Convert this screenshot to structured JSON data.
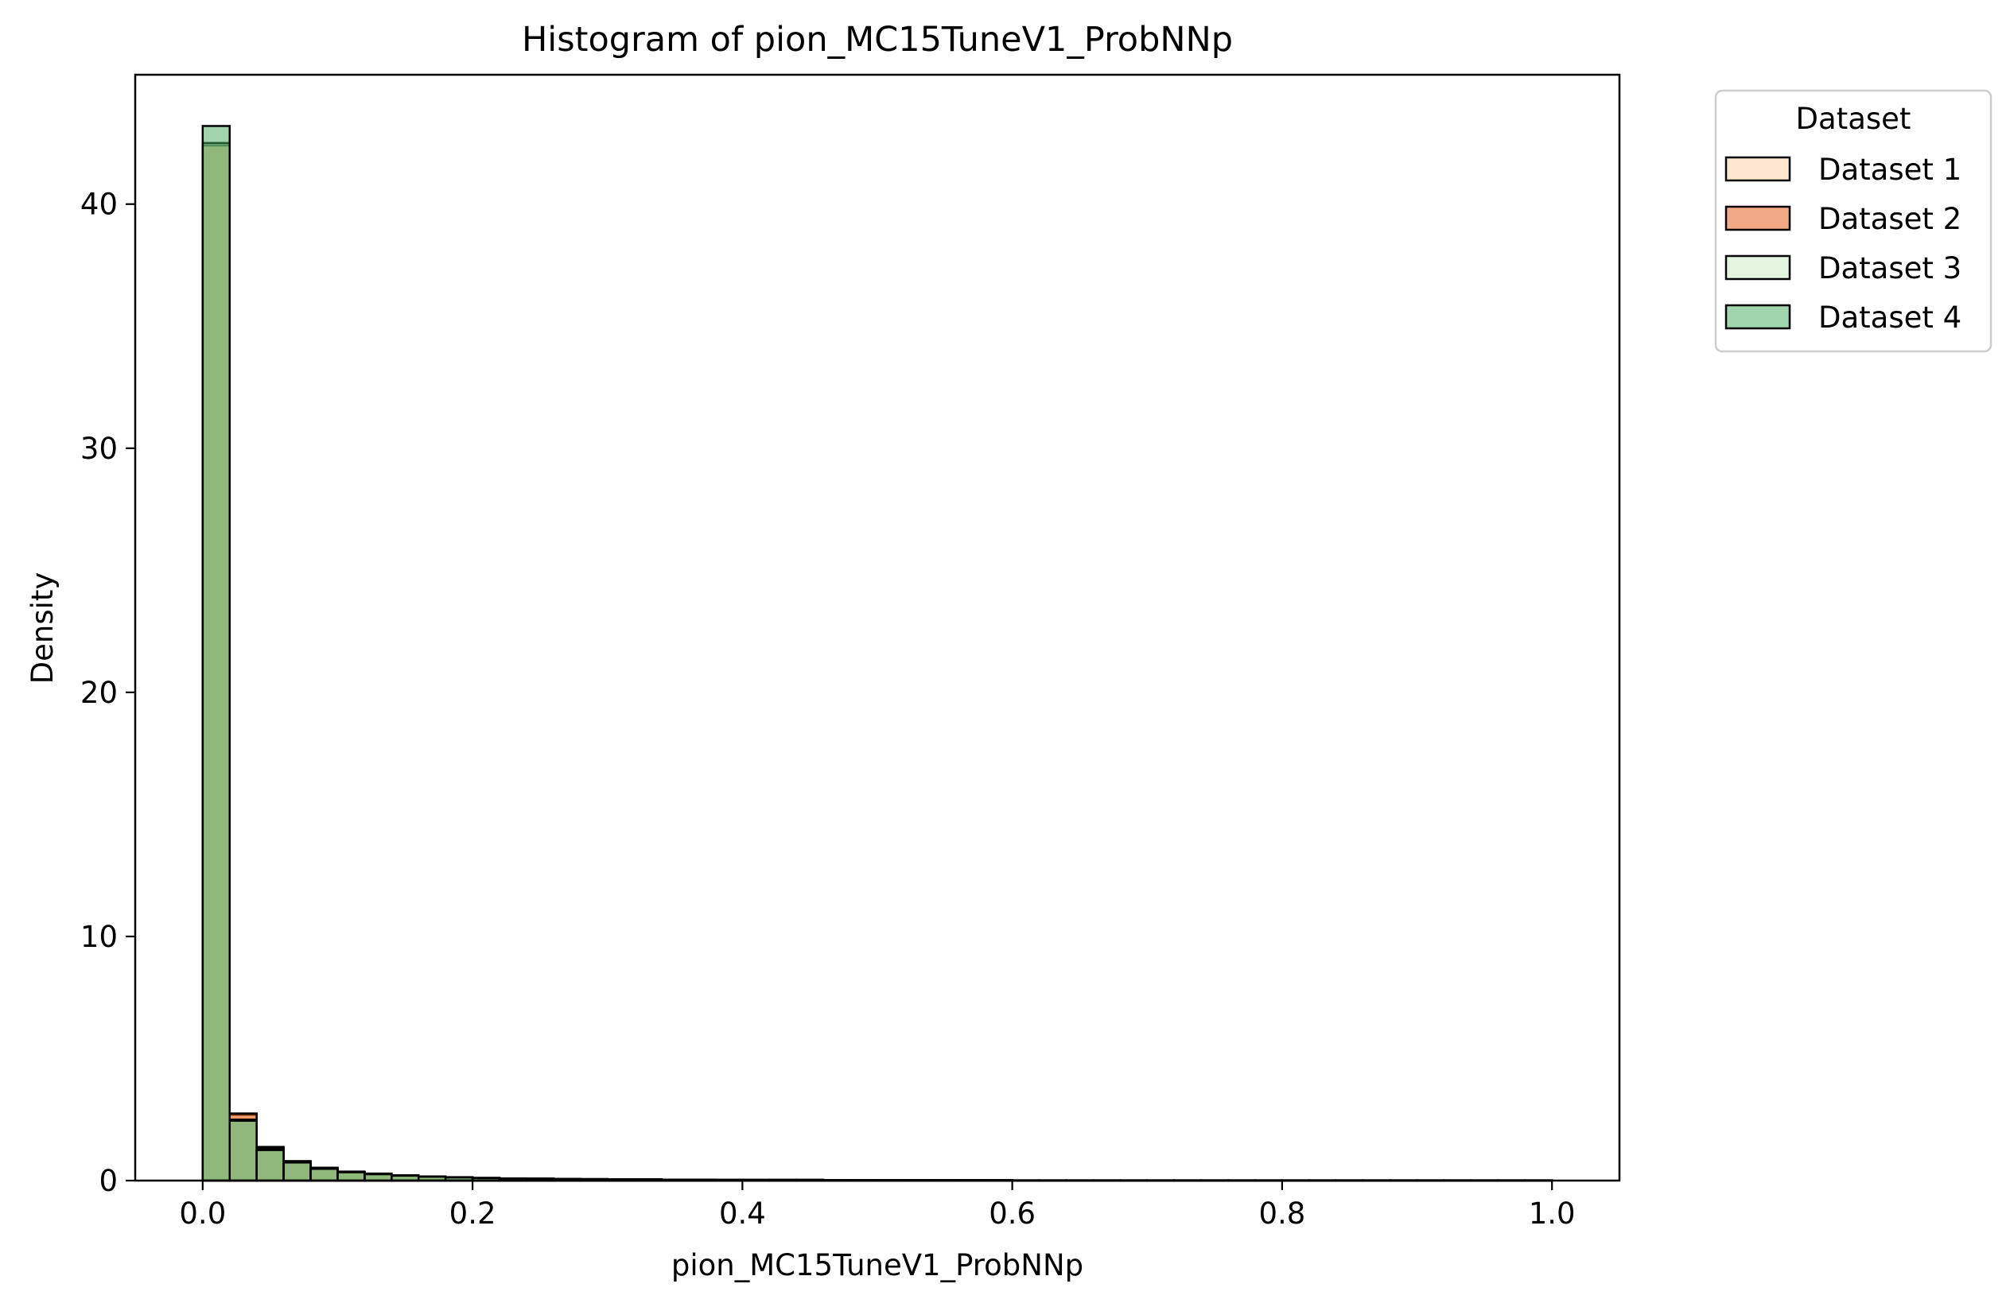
{
  "chart_data": {
    "type": "histogram",
    "title": "Histogram of pion_MC15TuneV1_ProbNNp",
    "xlabel": "pion_MC15TuneV1_ProbNNp",
    "ylabel": "Density",
    "xlim": [
      -0.05,
      1.05
    ],
    "ylim": [
      0,
      45.3
    ],
    "xticks": [
      0.0,
      0.2,
      0.4,
      0.6,
      0.8,
      1.0
    ],
    "xtick_labels": [
      "0.0",
      "0.2",
      "0.4",
      "0.6",
      "0.8",
      "1.0"
    ],
    "yticks": [
      0,
      10,
      20,
      30,
      40
    ],
    "ytick_labels": [
      "0",
      "10",
      "20",
      "30",
      "40"
    ],
    "bins": 50,
    "bin_range": [
      0,
      1
    ],
    "grid": false,
    "legend": {
      "title": "Dataset",
      "placement": "outside upper right"
    },
    "series": [
      {
        "name": "Dataset 1",
        "color": "#fdd0a2",
        "values": [
          42.5,
          2.7,
          1.35,
          0.78,
          0.52,
          0.36,
          0.28,
          0.22,
          0.17,
          0.14,
          0.11,
          0.09,
          0.08,
          0.07,
          0.06,
          0.05,
          0.05,
          0.04,
          0.04,
          0.03,
          0.03,
          0.03,
          0.03,
          0.02,
          0.02,
          0.02,
          0.02,
          0.02,
          0.02,
          0.02,
          0.01,
          0.01,
          0.01,
          0.01,
          0.01,
          0.01,
          0.01,
          0.01,
          0.01,
          0.01,
          0.01,
          0.01,
          0.01,
          0.01,
          0.01,
          0.01,
          0.01,
          0.01,
          0.01,
          0.01
        ]
      },
      {
        "name": "Dataset 2",
        "color": "#e6550d",
        "values": [
          42.4,
          2.75,
          1.38,
          0.8,
          0.53,
          0.37,
          0.29,
          0.22,
          0.17,
          0.14,
          0.11,
          0.09,
          0.08,
          0.07,
          0.06,
          0.05,
          0.05,
          0.04,
          0.04,
          0.03,
          0.03,
          0.03,
          0.03,
          0.02,
          0.02,
          0.02,
          0.02,
          0.02,
          0.02,
          0.02,
          0.01,
          0.01,
          0.01,
          0.01,
          0.01,
          0.01,
          0.01,
          0.01,
          0.01,
          0.01,
          0.01,
          0.01,
          0.01,
          0.01,
          0.01,
          0.01,
          0.01,
          0.01,
          0.01,
          0.01
        ]
      },
      {
        "name": "Dataset 3",
        "color": "#c7e9c0",
        "values": [
          42.5,
          2.5,
          1.3,
          0.76,
          0.5,
          0.35,
          0.27,
          0.21,
          0.16,
          0.13,
          0.11,
          0.09,
          0.08,
          0.07,
          0.06,
          0.05,
          0.05,
          0.04,
          0.04,
          0.03,
          0.03,
          0.03,
          0.03,
          0.02,
          0.02,
          0.02,
          0.02,
          0.02,
          0.02,
          0.02,
          0.01,
          0.01,
          0.01,
          0.01,
          0.01,
          0.01,
          0.01,
          0.01,
          0.01,
          0.01,
          0.01,
          0.01,
          0.01,
          0.01,
          0.01,
          0.01,
          0.01,
          0.01,
          0.01,
          0.01
        ]
      },
      {
        "name": "Dataset 4",
        "color": "#41ab5d",
        "values": [
          43.2,
          2.45,
          1.25,
          0.74,
          0.48,
          0.34,
          0.26,
          0.2,
          0.16,
          0.13,
          0.1,
          0.09,
          0.08,
          0.07,
          0.06,
          0.05,
          0.05,
          0.04,
          0.04,
          0.03,
          0.03,
          0.03,
          0.03,
          0.02,
          0.02,
          0.02,
          0.02,
          0.02,
          0.02,
          0.02,
          0.01,
          0.01,
          0.01,
          0.01,
          0.01,
          0.01,
          0.01,
          0.01,
          0.01,
          0.01,
          0.01,
          0.01,
          0.01,
          0.01,
          0.01,
          0.01,
          0.01,
          0.01,
          0.01,
          0.01
        ]
      }
    ]
  }
}
